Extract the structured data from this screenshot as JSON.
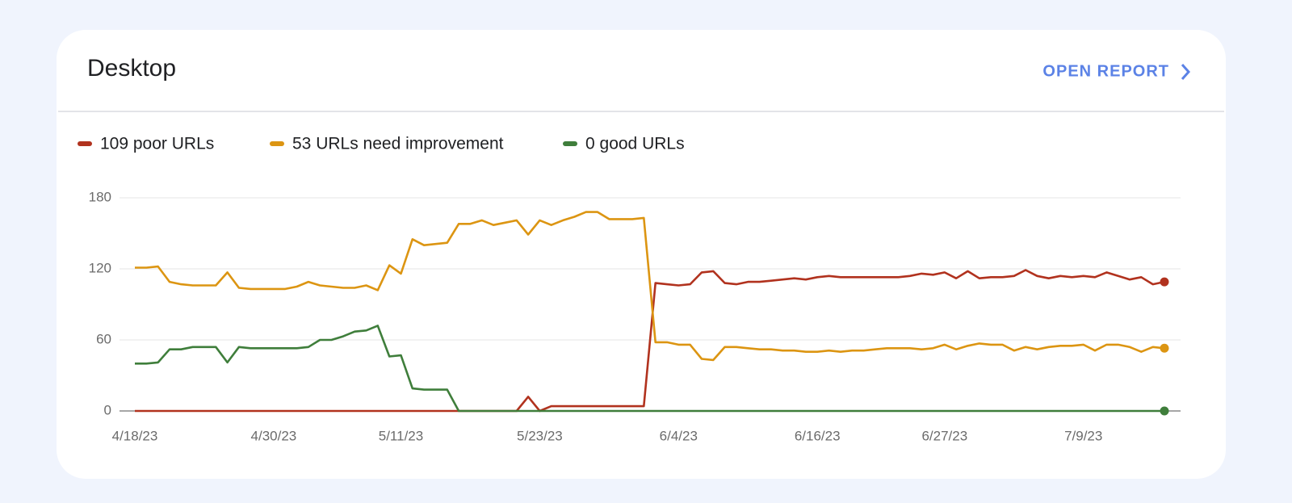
{
  "header": {
    "title": "Desktop",
    "link": "OPEN REPORT"
  },
  "chart_data": {
    "type": "line",
    "categories": [
      "4/18/23",
      null,
      null,
      null,
      null,
      null,
      null,
      null,
      null,
      null,
      null,
      null,
      "4/30/23",
      null,
      null,
      null,
      null,
      null,
      null,
      null,
      null,
      null,
      null,
      "5/11/23",
      null,
      null,
      null,
      null,
      null,
      null,
      null,
      null,
      null,
      null,
      null,
      "5/23/23",
      null,
      null,
      null,
      null,
      null,
      null,
      null,
      null,
      null,
      null,
      null,
      "6/4/23",
      null,
      null,
      null,
      null,
      null,
      null,
      null,
      null,
      null,
      null,
      null,
      "6/16/23",
      null,
      null,
      null,
      null,
      null,
      null,
      null,
      null,
      null,
      null,
      "6/27/23",
      null,
      null,
      null,
      null,
      null,
      null,
      null,
      null,
      null,
      null,
      null,
      "7/9/23",
      null,
      null,
      null,
      null,
      null,
      null,
      null
    ],
    "series": [
      {
        "name": "109 poor URLs",
        "color": "#b1321e",
        "values": [
          0,
          0,
          0,
          0,
          0,
          0,
          0,
          0,
          0,
          0,
          0,
          0,
          0,
          0,
          0,
          0,
          0,
          0,
          0,
          0,
          0,
          0,
          0,
          0,
          0,
          0,
          0,
          0,
          0,
          0,
          0,
          0,
          0,
          0,
          12,
          0,
          4,
          4,
          4,
          4,
          4,
          4,
          4,
          4,
          4,
          108,
          107,
          106,
          107,
          117,
          118,
          108,
          107,
          109,
          109,
          110,
          111,
          112,
          111,
          113,
          114,
          113,
          113,
          113,
          113,
          113,
          113,
          114,
          116,
          115,
          117,
          112,
          118,
          112,
          113,
          113,
          114,
          119,
          114,
          112,
          114,
          113,
          114,
          113,
          117,
          114,
          111,
          113,
          107,
          109
        ]
      },
      {
        "name": "53 URLs need improvement",
        "color": "#dc9512",
        "values": [
          121,
          121,
          122,
          109,
          107,
          106,
          106,
          106,
          117,
          104,
          103,
          103,
          103,
          103,
          105,
          109,
          106,
          105,
          104,
          104,
          106,
          102,
          123,
          116,
          145,
          140,
          141,
          142,
          158,
          158,
          161,
          157,
          159,
          161,
          149,
          161,
          157,
          161,
          164,
          168,
          168,
          162,
          162,
          162,
          163,
          58,
          58,
          56,
          56,
          44,
          43,
          54,
          54,
          53,
          52,
          52,
          51,
          51,
          50,
          50,
          51,
          50,
          51,
          51,
          52,
          53,
          53,
          53,
          52,
          53,
          56,
          52,
          55,
          57,
          56,
          56,
          51,
          54,
          52,
          54,
          55,
          55,
          56,
          51,
          56,
          56,
          54,
          50,
          54,
          53
        ]
      },
      {
        "name": "0 good URLs",
        "color": "#3f7e3b",
        "values": [
          40,
          40,
          41,
          52,
          52,
          54,
          54,
          54,
          41,
          54,
          53,
          53,
          53,
          53,
          53,
          54,
          60,
          60,
          63,
          67,
          68,
          72,
          46,
          47,
          19,
          18,
          18,
          18,
          0,
          0,
          0,
          0,
          0,
          0,
          0,
          0,
          0,
          0,
          0,
          0,
          0,
          0,
          0,
          0,
          0,
          0,
          0,
          0,
          0,
          0,
          0,
          0,
          0,
          0,
          0,
          0,
          0,
          0,
          0,
          0,
          0,
          0,
          0,
          0,
          0,
          0,
          0,
          0,
          0,
          0,
          0,
          0,
          0,
          0,
          0,
          0,
          0,
          0,
          0,
          0,
          0,
          0,
          0,
          0,
          0,
          0,
          0,
          0,
          0,
          0
        ]
      }
    ],
    "ylim": [
      0,
      180
    ],
    "yticks": [
      0,
      60,
      120,
      180
    ],
    "grid": true
  }
}
